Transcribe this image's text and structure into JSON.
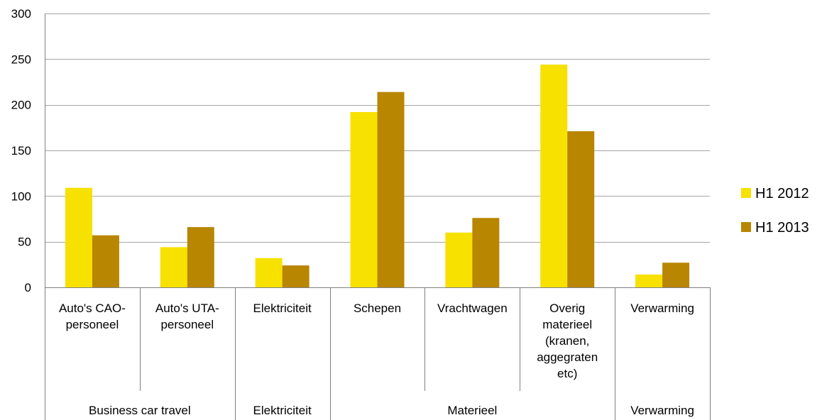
{
  "chart_data": {
    "type": "bar",
    "title": "",
    "xlabel": "",
    "ylabel": "",
    "ylim": [
      0,
      300
    ],
    "yticks": [
      0,
      50,
      100,
      150,
      200,
      250,
      300
    ],
    "grid": true,
    "legend_position": "right",
    "categories": [
      [
        "Auto's CAO-",
        "personeel"
      ],
      [
        "Auto's UTA-",
        "personeel"
      ],
      [
        "Elektriciteit"
      ],
      [
        "Schepen"
      ],
      [
        "Vrachtwagen"
      ],
      [
        "Overig",
        "materieel",
        "(kranen,",
        "aggegraten",
        "etc)"
      ],
      [
        "Verwarming"
      ]
    ],
    "groups": [
      {
        "label": "Business car travel",
        "span": [
          0,
          1
        ]
      },
      {
        "label": "Elektriciteit",
        "span": [
          2,
          2
        ]
      },
      {
        "label": "Materieel",
        "span": [
          3,
          5
        ]
      },
      {
        "label": "Verwarming",
        "span": [
          6,
          6
        ]
      }
    ],
    "series": [
      {
        "name": "H1 2012",
        "color": "#F7E100",
        "values": [
          109,
          44,
          32,
          192,
          60,
          244,
          14
        ]
      },
      {
        "name": "H1 2013",
        "color": "#B88600",
        "values": [
          57,
          66,
          24,
          214,
          76,
          171,
          27
        ]
      }
    ]
  }
}
